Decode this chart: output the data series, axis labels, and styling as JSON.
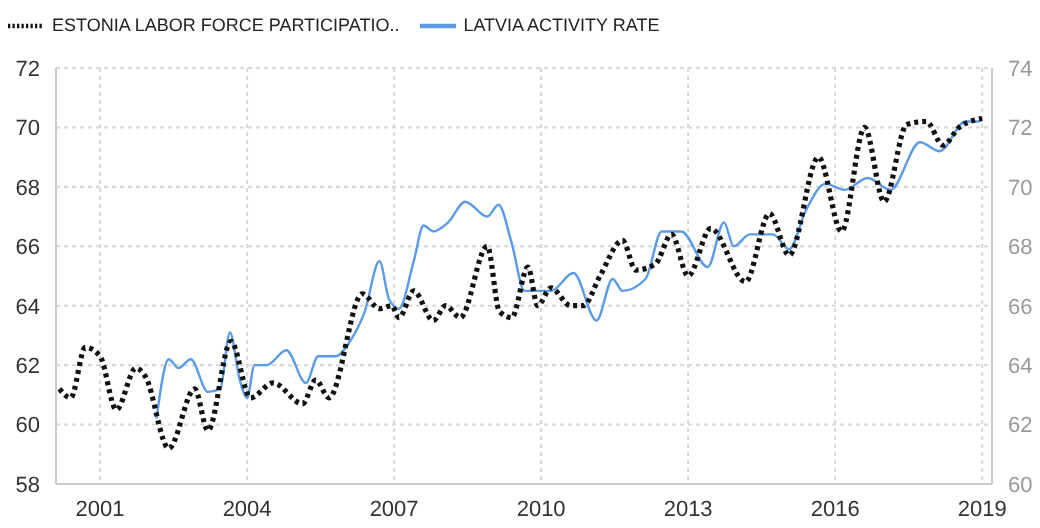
{
  "chart_data": {
    "type": "line",
    "legend": "top left",
    "grid": true,
    "marker": "none",
    "xlim": [
      2000.1,
      2019.2
    ],
    "xticks": [
      2001,
      2004,
      2007,
      2010,
      2013,
      2016,
      2019
    ],
    "ylim": [
      58,
      72
    ],
    "yticks": [
      58,
      60,
      62,
      64,
      66,
      68,
      70,
      72
    ],
    "y2lim": [
      60,
      74
    ],
    "y2ticks": [
      60,
      62,
      64,
      66,
      68,
      70,
      72,
      74
    ],
    "series": [
      {
        "name": "LATVIA ACTIVITY RATE",
        "color": "#5b9be8",
        "line_style": "solid",
        "x": [
          2002.15,
          2002.4,
          2002.6,
          2002.85,
          2003.2,
          2003.45,
          2003.65,
          2003.85,
          2004.0,
          2004.15,
          2004.4,
          2004.8,
          2005.2,
          2005.45,
          2005.8,
          2006.1,
          2006.4,
          2006.7,
          2006.9,
          2007.1,
          2007.4,
          2007.6,
          2007.8,
          2008.1,
          2008.45,
          2008.9,
          2009.13,
          2009.4,
          2009.66,
          2010.2,
          2010.66,
          2011.13,
          2011.46,
          2011.66,
          2012.13,
          2012.46,
          2012.86,
          2013.4,
          2013.73,
          2013.93,
          2014.26,
          2014.73,
          2015.06,
          2015.4,
          2015.8,
          2016.2,
          2016.66,
          2017.13,
          2017.73,
          2018.13,
          2018.66,
          2018.95
        ],
        "values": [
          60.2,
          62.2,
          61.9,
          62.2,
          61.1,
          61.2,
          63.1,
          61.5,
          60.9,
          62.0,
          62.0,
          62.5,
          61.4,
          62.3,
          62.3,
          62.8,
          63.8,
          65.5,
          64.2,
          63.9,
          65.5,
          66.7,
          66.5,
          66.8,
          67.5,
          67.0,
          67.4,
          66.1,
          64.5,
          64.5,
          65.1,
          63.5,
          64.9,
          64.5,
          64.9,
          66.5,
          66.5,
          65.3,
          66.8,
          66.0,
          66.4,
          66.4,
          65.9,
          67.2,
          68.1,
          67.9,
          68.3,
          67.9,
          69.5,
          69.2,
          70.2,
          70.2
        ]
      },
      {
        "name": "ESTONIA LABOR FORCE PARTICIPATIO..",
        "color": "#111111",
        "line_style": "dotted",
        "axis": "y2",
        "x": [
          2000.17,
          2000.4,
          2000.7,
          2001.0,
          2001.33,
          2001.73,
          2001.93,
          2002.4,
          2002.93,
          2003.2,
          2003.67,
          2004.07,
          2004.53,
          2005.13,
          2005.4,
          2005.67,
          2006.35,
          2006.7,
          2006.95,
          2007.1,
          2007.4,
          2007.8,
          2008.05,
          2008.35,
          2008.9,
          2009.15,
          2009.4,
          2009.73,
          2009.93,
          2010.2,
          2010.6,
          2010.86,
          2011.2,
          2011.66,
          2011.93,
          2012.33,
          2012.66,
          2013.0,
          2013.46,
          2014.17,
          2014.66,
          2015.06,
          2015.66,
          2016.13,
          2016.6,
          2017.0,
          2017.46,
          2017.86,
          2018.2,
          2018.53,
          2019.0
        ],
        "values": [
          63.2,
          62.9,
          64.6,
          64.3,
          62.5,
          63.9,
          63.6,
          61.2,
          63.2,
          61.8,
          64.8,
          62.9,
          63.4,
          62.7,
          63.5,
          62.9,
          66.4,
          65.9,
          66.0,
          65.6,
          66.5,
          65.5,
          66.0,
          65.6,
          68.0,
          65.8,
          65.6,
          67.3,
          66.0,
          66.6,
          66.0,
          66.0,
          67.0,
          68.2,
          67.2,
          67.4,
          68.4,
          67.0,
          68.6,
          66.8,
          69.1,
          67.7,
          71.0,
          68.5,
          72.0,
          69.5,
          72.1,
          72.2,
          71.4,
          72.0,
          72.3
        ]
      }
    ]
  }
}
